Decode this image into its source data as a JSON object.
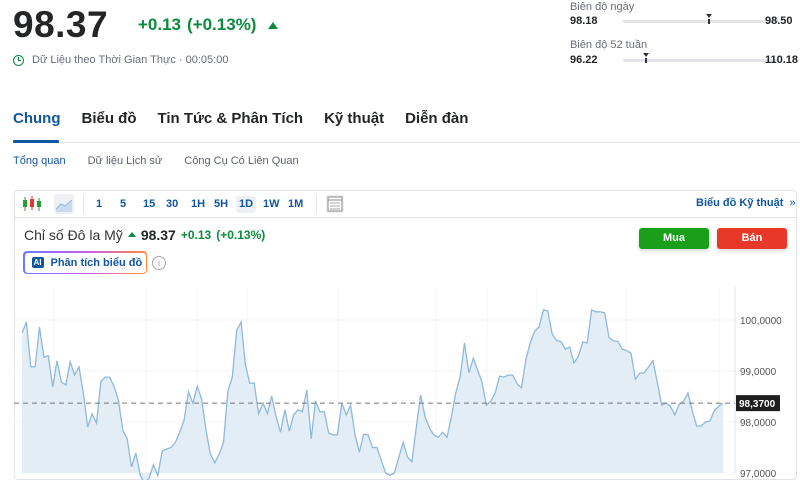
{
  "header": {
    "price": "98.37",
    "change": "+0.13",
    "change_pct": "(+0.13%)",
    "realtime_label": "Dữ Liệu theo Thời Gian Thực",
    "time": "00:05:00",
    "separator": "·"
  },
  "ranges": {
    "day": {
      "label": "Biên độ ngày",
      "low": "98.18",
      "high": "98.50",
      "position": 0.56
    },
    "week52": {
      "label": "Biên độ 52 tuần",
      "low": "96.22",
      "high": "110.18",
      "position": 0.15
    }
  },
  "tabs": [
    {
      "label": "Chung"
    },
    {
      "label": "Biểu đồ"
    },
    {
      "label": "Tin Tức & Phân Tích"
    },
    {
      "label": "Kỹ thuật"
    },
    {
      "label": "Diễn đàn"
    }
  ],
  "subtabs": [
    {
      "label": "Tổng quan"
    },
    {
      "label": "Dữ liệu Lịch sử"
    },
    {
      "label": "Công Cụ Có Liên Quan"
    }
  ],
  "toolbar": {
    "intervals": [
      "1",
      "5",
      "15",
      "30",
      "1H",
      "5H",
      "1D",
      "1W",
      "1M"
    ],
    "selected": "1D",
    "tech_chart_label": "Biểu đồ Kỹ thuật",
    "tech_chart_chevron": "»"
  },
  "instrument": {
    "name": "Chỉ số Đô la Mỹ",
    "price": "98.37",
    "change": "+0.13",
    "change_pct": "(+0.13%)"
  },
  "buttons": {
    "buy": "Mua",
    "sell": "Bán",
    "ai_badge": "AI",
    "ai_label": "Phân tích biểu đồ",
    "info": "i"
  },
  "colors": {
    "up": "#0a8a3c",
    "accent": "#1256a0",
    "buy": "#1a9f1a",
    "sell": "#e8382a",
    "line": "#8fb9dc",
    "fill": "#e3edf5"
  },
  "chart_data": {
    "type": "area",
    "yticks": [
      "100,0000",
      "99,0000",
      "98,0000",
      "97,0000"
    ],
    "ytick_values": [
      100,
      99,
      98,
      97
    ],
    "current_label": "98,3700",
    "current_value": 98.37,
    "values": [
      99.75,
      99.96,
      99.08,
      99.08,
      99.86,
      99.27,
      99.3,
      98.69,
      99.2,
      98.78,
      98.73,
      99.18,
      98.92,
      99.08,
      98.57,
      97.9,
      98.16,
      97.98,
      98.8,
      98.88,
      98.88,
      98.7,
      98.43,
      97.84,
      97.67,
      97.12,
      97.39,
      96.95,
      96.8,
      96.9,
      97.16,
      96.95,
      97.43,
      97.47,
      97.5,
      97.6,
      97.8,
      98.04,
      98.59,
      98.37,
      98.7,
      98.45,
      97.84,
      97.37,
      97.2,
      97.37,
      97.6,
      98.61,
      98.88,
      99.8,
      99.96,
      99.12,
      98.76,
      98.76,
      98.16,
      98.37,
      98.16,
      98.51,
      98.1,
      97.8,
      98.24,
      97.82,
      98.14,
      98.24,
      98.2,
      98.63,
      97.67,
      98.41,
      98.2,
      98.2,
      97.78,
      97.75,
      97.75,
      98.37,
      98.14,
      98.33,
      97.75,
      97.41,
      97.76,
      97.75,
      97.5,
      97.5,
      97.25,
      97.0,
      96.95,
      97.0,
      97.31,
      97.6,
      97.31,
      97.22,
      97.9,
      98.53,
      98.1,
      97.88,
      97.75,
      97.7,
      97.8,
      97.7,
      98.1,
      98.57,
      98.88,
      99.55,
      98.96,
      99.25,
      99.02,
      98.78,
      98.33,
      98.41,
      98.57,
      98.9,
      98.88,
      98.92,
      98.92,
      98.75,
      98.67,
      99.22,
      99.55,
      99.78,
      99.86,
      100.2,
      100.18,
      99.73,
      99.6,
      99.58,
      99.43,
      99.47,
      99.16,
      99.29,
      99.57,
      99.55,
      100.2,
      100.16,
      100.16,
      100.14,
      99.65,
      99.59,
      99.58,
      99.43,
      99.4,
      99.35,
      98.84,
      98.96,
      98.96,
      99.08,
      99.2,
      98.78,
      98.33,
      98.37,
      98.31,
      98.14,
      98.35,
      98.41,
      98.57,
      98.22,
      97.92,
      97.92,
      98.0,
      98.02,
      98.22,
      98.31,
      98.37
    ],
    "grid": true
  }
}
